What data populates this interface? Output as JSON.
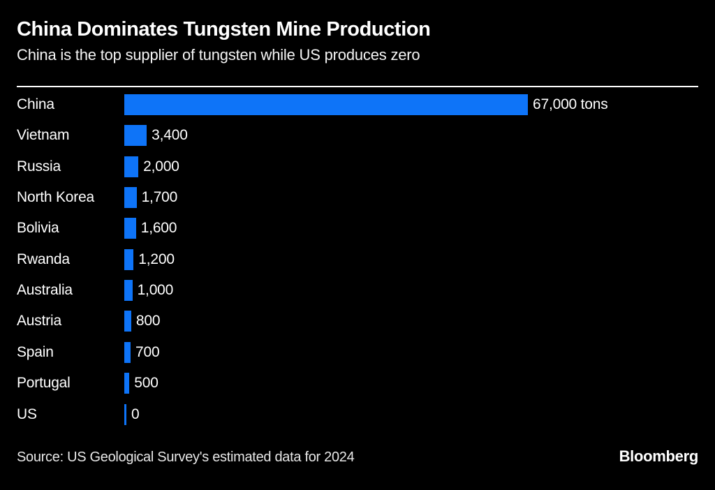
{
  "header": {
    "title": "China Dominates Tungsten Mine Production",
    "subtitle": "China is the top supplier of tungsten while US produces zero"
  },
  "chart_data": {
    "type": "bar",
    "orientation": "horizontal",
    "title": "China Dominates Tungsten Mine Production",
    "subtitle": "China is the top supplier of tungsten while US produces zero",
    "categories": [
      "China",
      "Vietnam",
      "Russia",
      "North Korea",
      "Bolivia",
      "Rwanda",
      "Australia",
      "Austria",
      "Spain",
      "Portugal",
      "US"
    ],
    "values": [
      67000,
      3400,
      2000,
      1700,
      1600,
      1200,
      1000,
      800,
      700,
      500,
      0
    ],
    "value_labels": [
      "67,000 tons",
      "3,400",
      "2,000",
      "1,700",
      "1,600",
      "1,200",
      "1,000",
      "800",
      "700",
      "500",
      "0"
    ],
    "unit": "tons",
    "xlim": [
      0,
      67000
    ],
    "bar_color": "#0E74F8",
    "grid": false,
    "legend": false
  },
  "footer": {
    "source": "Source: US Geological Survey's estimated data for 2024",
    "brand": "Bloomberg"
  },
  "colors": {
    "background": "#000000",
    "text": "#FFFFFF",
    "bar": "#0E74F8",
    "divider": "#FFFFFF",
    "source_text": "#E8E8E8"
  }
}
